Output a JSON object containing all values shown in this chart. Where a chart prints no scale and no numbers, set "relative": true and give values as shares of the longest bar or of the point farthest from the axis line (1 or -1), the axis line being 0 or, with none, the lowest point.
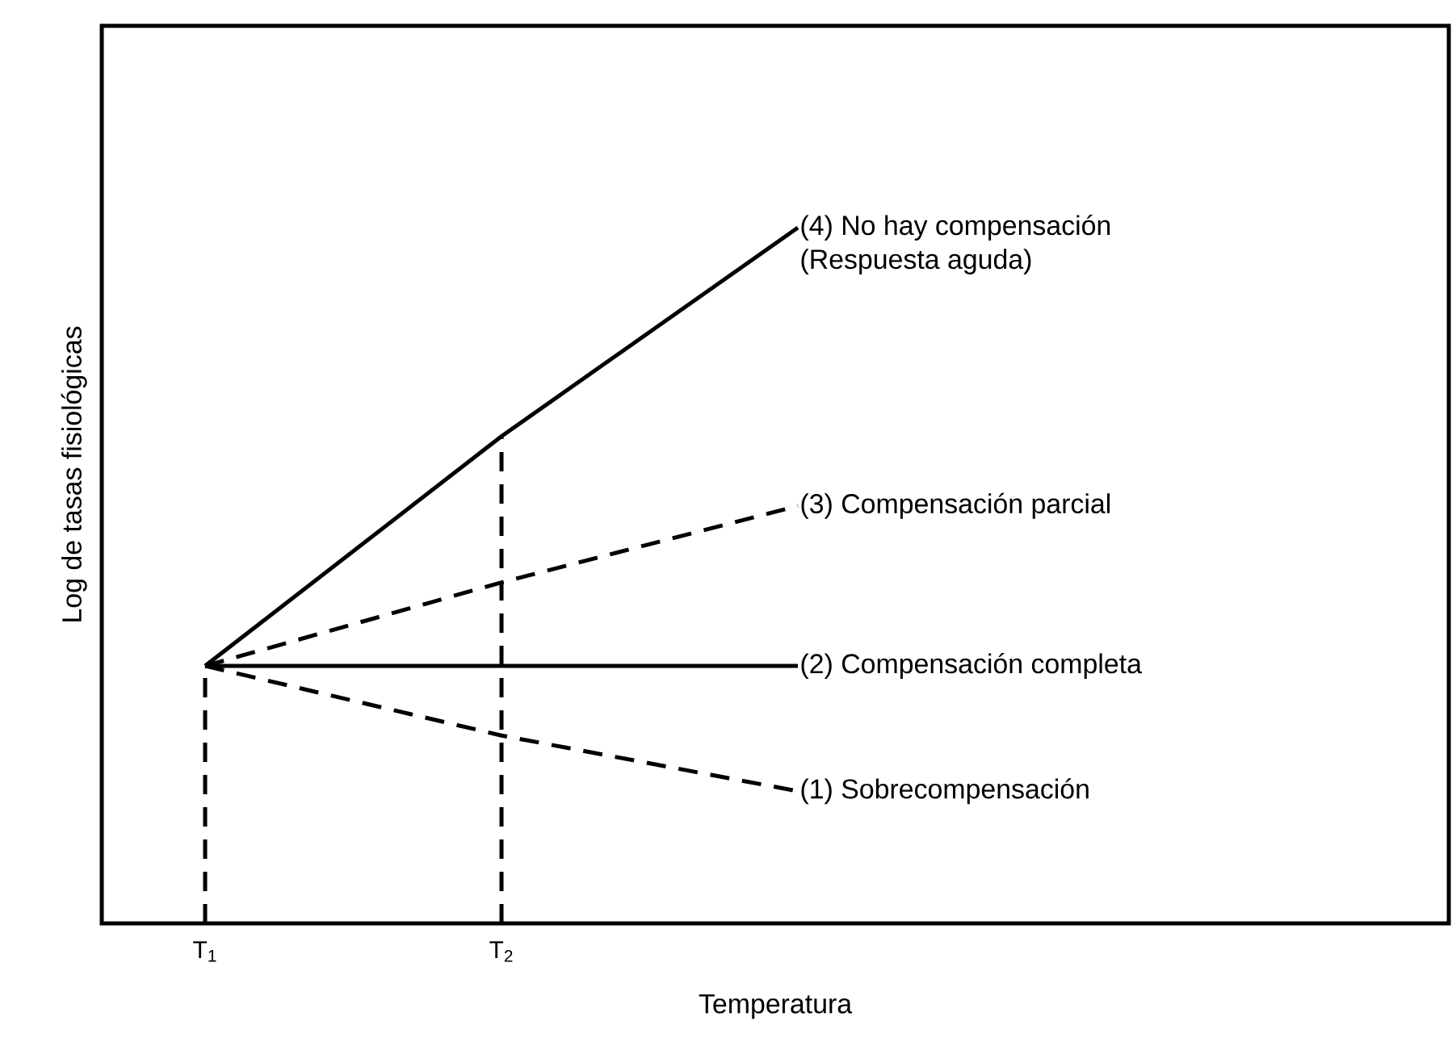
{
  "chart_data": {
    "type": "line",
    "relative": true,
    "xlabel": "Temperatura",
    "ylabel": "Log de tasas fisiológicas",
    "categories": [
      "T$_{1}$",
      "T$_{2}$",
      null
    ],
    "marker": "none",
    "legend": false,
    "grid": false,
    "series": [
      {
        "name": "(4) No hay compensación",
        "color": "#000000",
        "line_style": "solid",
        "values": [
          0.37,
          0.7,
          1
        ]
      },
      {
        "name": "(3) Compensación parcial",
        "color": "#000000",
        "line_style": "dashed",
        "values": [
          0.37,
          0.49,
          0.6
        ]
      },
      {
        "name": "(2) Compensación completa",
        "color": "#000000",
        "line_style": "solid",
        "values": [
          0.37,
          0.37,
          0.37
        ]
      },
      {
        "name": "(1) Sobrecompensación",
        "color": "#000000",
        "line_style": "dashed",
        "values": [
          0.37,
          0.27,
          0.19
        ]
      },
      {
        "color": "#000000",
        "line_style": "dashed",
        "x": [
          "T$_{1}$",
          "T$_{1}$"
        ],
        "values": [
          0,
          0.37
        ]
      },
      {
        "color": "#000000",
        "line_style": "dashed",
        "x": [
          "T$_{2}$",
          "T$_{2}$"
        ],
        "values": [
          0,
          0.7
        ]
      }
    ],
    "annotations": [
      "(Respuesta aguda)"
    ]
  }
}
